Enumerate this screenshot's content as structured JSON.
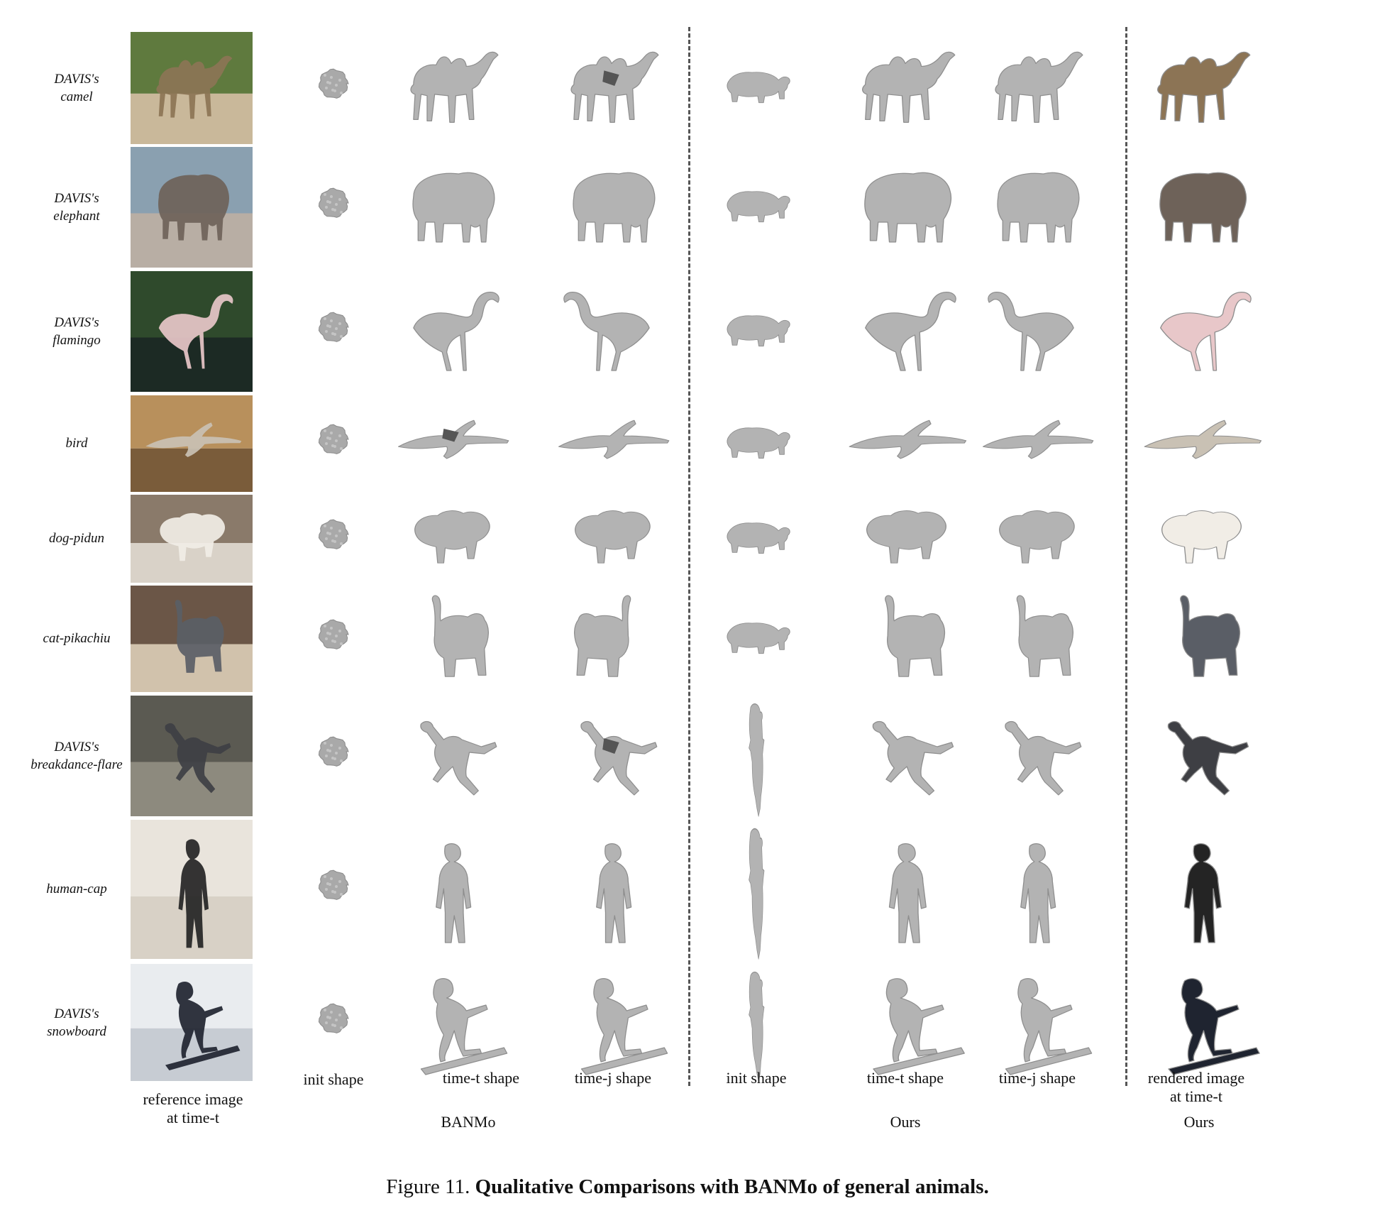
{
  "figure": {
    "rows": [
      {
        "label_line1": "DAVIS's",
        "label_line2": "camel",
        "animal": "camel",
        "photo_colors": [
          "#5f7a3e",
          "#c9b89a",
          "#8c7455"
        ]
      },
      {
        "label_line1": "DAVIS's",
        "label_line2": "elephant",
        "animal": "elephant",
        "photo_colors": [
          "#8aa0b0",
          "#b8aea4",
          "#6e6259"
        ]
      },
      {
        "label_line1": "DAVIS's",
        "label_line2": "flamingo",
        "animal": "flamingo",
        "photo_colors": [
          "#2f4a2c",
          "#1c2a24",
          "#e8c7c9"
        ]
      },
      {
        "label_line1": "bird",
        "label_line2": "",
        "animal": "bird",
        "photo_colors": [
          "#b8905c",
          "#7a5c3a",
          "#c9c1b4"
        ]
      },
      {
        "label_line1": "dog-pidun",
        "label_line2": "",
        "animal": "dog",
        "photo_colors": [
          "#8a7a6a",
          "#d9d2c8",
          "#f1ede6"
        ]
      },
      {
        "label_line1": "cat-pikachiu",
        "label_line2": "",
        "animal": "cat",
        "photo_colors": [
          "#6b5647",
          "#d1c2ac",
          "#5a5e66"
        ]
      },
      {
        "label_line1": "DAVIS's",
        "label_line2": "breakdance-flare",
        "animal": "human-dance",
        "photo_colors": [
          "#5b5a52",
          "#8d8a7e",
          "#3e3f44"
        ]
      },
      {
        "label_line1": "human-cap",
        "label_line2": "",
        "animal": "human",
        "photo_colors": [
          "#e9e4dc",
          "#d8d1c6",
          "#242424"
        ]
      },
      {
        "label_line1": "DAVIS's",
        "label_line2": "snowboard",
        "animal": "snowboard",
        "photo_colors": [
          "#e9ecef",
          "#c7ccd3",
          "#1f2430"
        ]
      }
    ],
    "column_labels": {
      "reference_line1": "reference image",
      "reference_line2": "at time-t",
      "banmo_init": "init shape",
      "banmo_time_t": "time-t shape",
      "banmo_time_j": "time-j shape",
      "ours_init": "init shape",
      "ours_time_t": "time-t shape",
      "ours_time_j": "time-j shape",
      "rendered_line1": "rendered image",
      "rendered_line2": "at time-t"
    },
    "group_labels": {
      "banmo": "BANMo",
      "ours": "Ours",
      "ours_render": "Ours"
    },
    "caption": {
      "prefix": "Figure 11.",
      "bold": "Qualitative Comparisons with BANMo of general animals."
    },
    "colors": {
      "mesh_fill": "#b3b3b3",
      "mesh_stroke": "#8e8e8e",
      "separator": "#555555"
    }
  }
}
